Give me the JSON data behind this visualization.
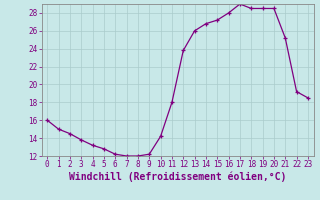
{
  "x": [
    0,
    1,
    2,
    3,
    4,
    5,
    6,
    7,
    8,
    9,
    10,
    11,
    12,
    13,
    14,
    15,
    16,
    17,
    18,
    19,
    20,
    21,
    22,
    23
  ],
  "y": [
    16,
    15,
    14.5,
    13.8,
    13.2,
    12.8,
    12.2,
    12.0,
    12.0,
    12.2,
    14.2,
    18.0,
    23.8,
    26.0,
    26.8,
    27.2,
    28.0,
    29.0,
    28.5,
    28.5,
    28.5,
    25.2,
    19.2,
    18.5
  ],
  "line_color": "#800080",
  "marker_color": "#800080",
  "bg_color": "#c8e8e8",
  "grid_color": "#aacccc",
  "xlabel": "Windchill (Refroidissement éolien,°C)",
  "ylim": [
    12,
    29
  ],
  "xlim": [
    -0.5,
    23.5
  ],
  "yticks": [
    12,
    14,
    16,
    18,
    20,
    22,
    24,
    26,
    28
  ],
  "xticks": [
    0,
    1,
    2,
    3,
    4,
    5,
    6,
    7,
    8,
    9,
    10,
    11,
    12,
    13,
    14,
    15,
    16,
    17,
    18,
    19,
    20,
    21,
    22,
    23
  ],
  "font_color": "#800080",
  "tick_fontsize": 5.5,
  "xlabel_fontsize": 7.0,
  "line_width": 0.9,
  "marker_size": 3.0,
  "border_color": "#888888"
}
